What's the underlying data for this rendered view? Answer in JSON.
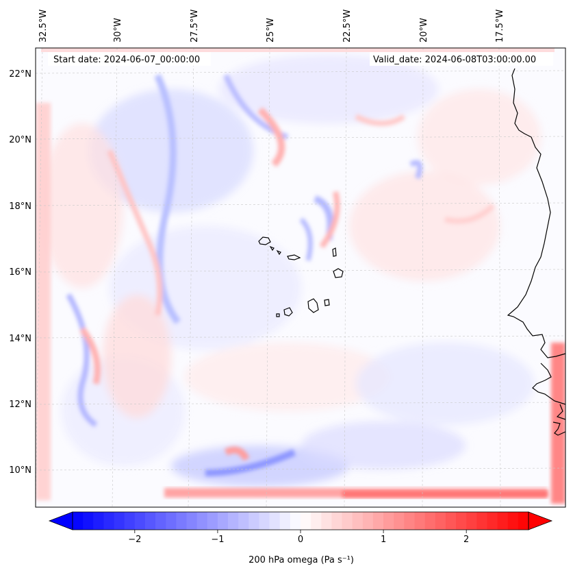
{
  "header": {
    "start_date": "Start date: 2024-06-07_00:00:00",
    "valid_date": "Valid_date: 2024-06-08T03:00:00.00"
  },
  "axes": {
    "lon_labels": [
      "32.5°W",
      "30°W",
      "27.5°W",
      "25°W",
      "22.5°W",
      "20°W",
      "17.5°W"
    ],
    "lat_labels": [
      "22°N",
      "20°N",
      "18°N",
      "16°N",
      "14°N",
      "12°N",
      "10°N"
    ]
  },
  "colorbar": {
    "title": "200 hPa omega (Pa s⁻¹)",
    "ticks": [
      "−2",
      "−1",
      "0",
      "1",
      "2"
    ],
    "tick_values": [
      -2,
      -1,
      0,
      1,
      2
    ],
    "range": [
      -2.75,
      2.75
    ],
    "colors": {
      "negative": "#0000ff",
      "neutral": "#ffffff",
      "positive": "#ff0000"
    },
    "extend": "both"
  },
  "map": {
    "projection": "lambert-like",
    "gridlines": "dashed light gray",
    "coastline_color": "#000000",
    "features": [
      "Cape Verde islands",
      "West African coastline"
    ]
  }
}
